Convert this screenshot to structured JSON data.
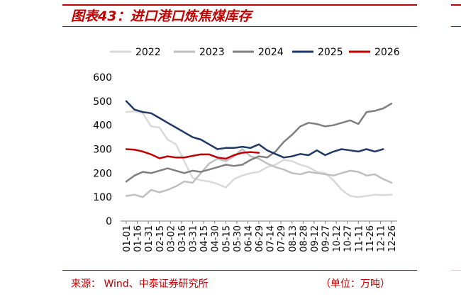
{
  "header": {
    "title": "图表43：进口港口炼焦煤库存"
  },
  "footer": {
    "source": "来源：  Wind、中泰证券研究所",
    "unit": "（单位：万吨）"
  },
  "chart_data": {
    "type": "line",
    "x_ticks": [
      "01-01",
      "01-16",
      "01-31",
      "02-15",
      "03-02",
      "03-16",
      "03-31",
      "04-15",
      "04-30",
      "05-15",
      "05-30",
      "06-14",
      "06-29",
      "07-14",
      "07-29",
      "08-13",
      "08-28",
      "09-12",
      "09-27",
      "10-12",
      "10-27",
      "11-11",
      "11-26",
      "12-11",
      "12-26"
    ],
    "y_ticks": [
      0,
      100,
      200,
      300,
      400,
      500,
      600
    ],
    "ylim": [
      0,
      600
    ],
    "legend_position": "top",
    "series": [
      {
        "name": "2022",
        "color": "#d9d9d9",
        "values": [
          455,
          458,
          450,
          395,
          390,
          340,
          320,
          250,
          180,
          170,
          165,
          155,
          140,
          175,
          190,
          200,
          205,
          225,
          235,
          255,
          250,
          235,
          225,
          205,
          200,
          170,
          130,
          105,
          100,
          105,
          110,
          108,
          110
        ]
      },
      {
        "name": "2023",
        "color": "#bfbfbf",
        "values": [
          105,
          110,
          100,
          130,
          120,
          130,
          145,
          165,
          160,
          200,
          240,
          260,
          250,
          270,
          300,
          270,
          260,
          240,
          225,
          215,
          200,
          195,
          205,
          200,
          195,
          190,
          200,
          210,
          205,
          190,
          195,
          175,
          160
        ]
      },
      {
        "name": "2024",
        "color": "#7f7f7f",
        "values": [
          165,
          190,
          205,
          200,
          210,
          220,
          210,
          200,
          210,
          205,
          215,
          225,
          235,
          230,
          235,
          255,
          270,
          265,
          290,
          330,
          360,
          395,
          410,
          405,
          395,
          400,
          410,
          420,
          405,
          455,
          460,
          470,
          490
        ]
      },
      {
        "name": "2025",
        "color": "#1f3864",
        "values": [
          500,
          465,
          455,
          450,
          430,
          410,
          390,
          370,
          350,
          340,
          320,
          300,
          305,
          305,
          310,
          305,
          320,
          295,
          280,
          265,
          270,
          280,
          275,
          295,
          275,
          290,
          300,
          295,
          290,
          300,
          290,
          300
        ]
      },
      {
        "name": "2026",
        "color": "#c00000",
        "values": [
          300,
          298,
          290,
          278,
          262,
          270,
          265,
          265,
          272,
          278,
          278,
          265,
          260,
          275,
          285,
          288,
          285
        ]
      }
    ]
  }
}
